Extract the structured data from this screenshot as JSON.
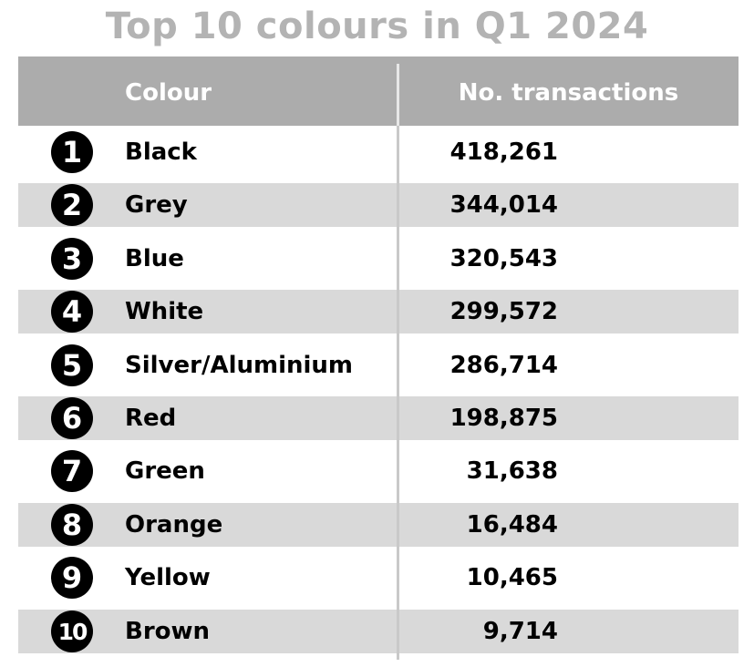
{
  "chart_data": {
    "type": "table",
    "title": "Top 10 colours in Q1 2024",
    "columns": [
      "Colour",
      "No. transactions"
    ],
    "rows": [
      {
        "rank": "1",
        "colour": "Black",
        "transactions": "418,261"
      },
      {
        "rank": "2",
        "colour": "Grey",
        "transactions": "344,014"
      },
      {
        "rank": "3",
        "colour": "Blue",
        "transactions": "320,543"
      },
      {
        "rank": "4",
        "colour": "White",
        "transactions": "299,572"
      },
      {
        "rank": "5",
        "colour": "Silver/Aluminium",
        "transactions": "286,714"
      },
      {
        "rank": "6",
        "colour": "Red",
        "transactions": "198,875"
      },
      {
        "rank": "7",
        "colour": "Green",
        "transactions": "31,638"
      },
      {
        "rank": "8",
        "colour": "Orange",
        "transactions": "16,484"
      },
      {
        "rank": "9",
        "colour": "Yellow",
        "transactions": "10,465"
      },
      {
        "rank": "10",
        "colour": "Brown",
        "transactions": "9,714"
      }
    ],
    "values": [
      418261,
      344014,
      320543,
      299572,
      286714,
      198875,
      31638,
      16484,
      10465,
      9714
    ],
    "colors": {
      "header_bg": "#acacac",
      "header_text": "#ffffff",
      "title": "#b3b3b3",
      "stripe": "#d9d9d9",
      "badge": "#000000"
    }
  }
}
